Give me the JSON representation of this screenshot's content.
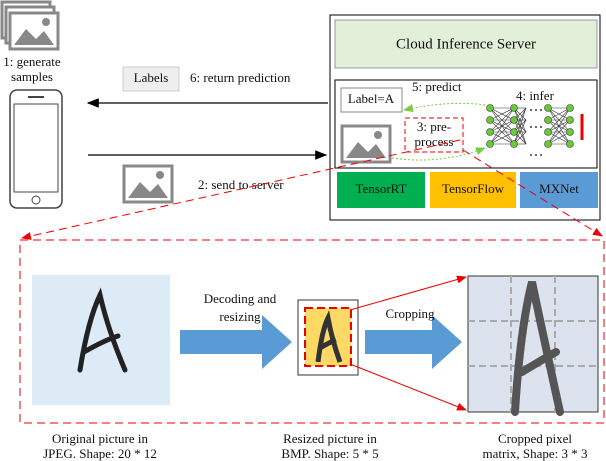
{
  "client": {
    "generate": [
      "1: generate",
      "samples"
    ],
    "labels": "Labels",
    "return": "6: return prediction",
    "send": "2: send to server"
  },
  "server": {
    "title": "Cloud Inference Server",
    "label": "Label=A",
    "predict": "5: predict",
    "infer": "4: infer",
    "preprocess": [
      "3: pre-",
      "process"
    ],
    "frameworks": [
      "TensorRT",
      "TensorFlow",
      "MXNet"
    ]
  },
  "pipeline": {
    "decode": [
      "Decoding and",
      "resizing"
    ],
    "crop": "Cropping",
    "captions": [
      [
        "Original picture in",
        "JPEG. Shape: 20 * 12"
      ],
      [
        "Resized picture in",
        "BMP. Shape: 5 * 5"
      ],
      [
        "Cropped pixel",
        "matrix, Shape: 3 * 3"
      ]
    ]
  }
}
